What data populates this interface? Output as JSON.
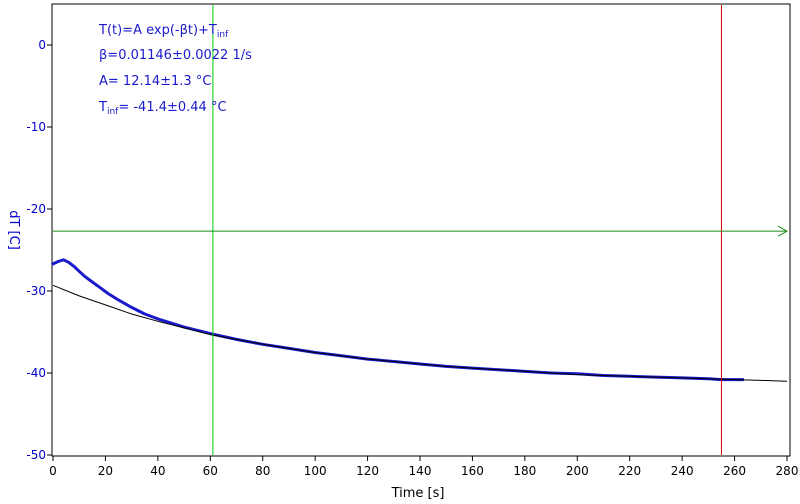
{
  "chart_data": {
    "type": "line",
    "xlabel": "Time [s]",
    "ylabel": "dT [C]",
    "xlim": [
      0,
      280
    ],
    "ylim": [
      -50,
      5
    ],
    "x_ticks": [
      0,
      20,
      40,
      60,
      80,
      100,
      120,
      140,
      160,
      180,
      200,
      220,
      240,
      260,
      280
    ],
    "y_ticks": [
      0,
      -10,
      -20,
      -30,
      -40,
      -50
    ],
    "grid": false,
    "annotations": {
      "formula": {
        "main": "T(t)=A exp(-βt)+T",
        "sub": "inf"
      },
      "beta": "β=0.01146±0.0022 1/s",
      "amplitude": "A= 12.14±1.3 °C",
      "tinf": {
        "prefix": "T",
        "sub": "inf",
        "rest": "= -41.4±0.44 °C"
      }
    },
    "cursors": {
      "vertical_green_x": 61,
      "vertical_red_x": 255,
      "horizontal_green_y": -22.7
    },
    "series": [
      {
        "kind": "measured",
        "color": "#1a1acc",
        "x": [
          0,
          2,
          4,
          6,
          8,
          10,
          12,
          15,
          18,
          21,
          25,
          30,
          35,
          40,
          50,
          60,
          70,
          80,
          90,
          100,
          110,
          120,
          130,
          140,
          150,
          160,
          170,
          180,
          190,
          200,
          210,
          220,
          230,
          240,
          250,
          255,
          260,
          263
        ],
        "y": [
          -26.7,
          -26.4,
          -26.2,
          -26.5,
          -27.0,
          -27.6,
          -28.2,
          -28.9,
          -29.6,
          -30.3,
          -31.1,
          -32.0,
          -32.8,
          -33.4,
          -34.4,
          -35.2,
          -35.9,
          -36.5,
          -37.0,
          -37.5,
          -37.9,
          -38.3,
          -38.6,
          -38.9,
          -39.2,
          -39.4,
          -39.6,
          -39.8,
          -40.0,
          -40.1,
          -40.3,
          -40.4,
          -40.5,
          -40.6,
          -40.7,
          -40.8,
          -40.8,
          -40.8
        ]
      },
      {
        "kind": "fit",
        "color": "#000000",
        "x": [
          0,
          10,
          20,
          30,
          40,
          50,
          60,
          70,
          80,
          90,
          100,
          110,
          120,
          130,
          140,
          150,
          160,
          170,
          180,
          190,
          200,
          210,
          220,
          230,
          240,
          250,
          260,
          270,
          280
        ],
        "y": [
          -29.3,
          -30.6,
          -31.7,
          -32.8,
          -33.7,
          -34.5,
          -35.3,
          -35.9,
          -36.5,
          -37.0,
          -37.5,
          -37.9,
          -38.3,
          -38.6,
          -38.9,
          -39.2,
          -39.4,
          -39.6,
          -39.8,
          -40.0,
          -40.2,
          -40.3,
          -40.4,
          -40.5,
          -40.6,
          -40.7,
          -40.8,
          -40.9,
          -41.0
        ]
      }
    ]
  },
  "colors": {
    "axis": "#000000",
    "ytick": "#0000cc",
    "ylabel": "#0000cc",
    "annotation": "#1a1acc",
    "cursor_green": "#00cc00",
    "cursor_hline": "#1a8a1a",
    "cursor_red": "#dd0000"
  }
}
